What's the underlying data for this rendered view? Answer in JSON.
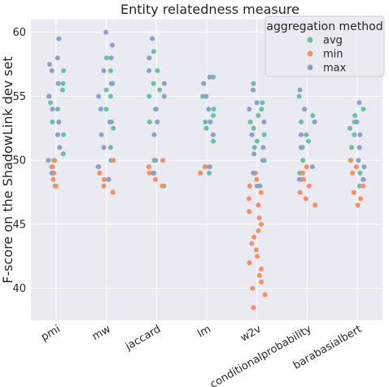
{
  "chart_data": {
    "type": "scatter",
    "subtype": "stripplot",
    "title": "Entity relatedness measure",
    "xlabel": "",
    "ylabel": "F-score on the ShadowLink dev set",
    "categories": [
      "pmi",
      "mw",
      "jaccard",
      "lm",
      "w2v",
      "conditionalprobability",
      "barabasialbert"
    ],
    "ylim": [
      37.5,
      61
    ],
    "yticks": [
      40,
      45,
      50,
      55,
      60
    ],
    "grid": true,
    "legend": {
      "title": "aggregation method",
      "placement": "top-right"
    },
    "series": [
      {
        "name": "avg",
        "color": "#66c2a5",
        "values": [
          [
            48,
            49.5,
            50,
            50.5,
            52,
            53,
            54,
            54.5,
            55,
            55.5,
            56,
            57
          ],
          [
            48.5,
            49.5,
            50,
            51,
            52.5,
            53,
            54,
            55,
            55.5,
            56,
            57,
            58
          ],
          [
            48,
            49,
            50,
            53,
            54,
            55,
            55.5,
            56,
            57,
            58.5
          ],
          [
            49,
            49.5,
            51.5,
            52.5,
            53,
            53.5,
            54,
            55,
            56.5
          ],
          [
            48,
            49,
            50,
            51,
            51.5,
            52,
            52.5,
            53,
            53.5,
            54,
            54.5,
            56
          ],
          [
            48.5,
            49,
            50,
            51,
            51.5,
            52,
            53,
            53.5,
            54,
            55
          ],
          [
            48,
            49,
            50,
            51,
            52,
            52.5,
            53,
            53.5,
            54
          ]
        ]
      },
      {
        "name": "min",
        "color": "#fc8d62",
        "values": [
          [
            48,
            48.5,
            49,
            49.5,
            50
          ],
          [
            47.5,
            48,
            48.5,
            49,
            49.5,
            50
          ],
          [
            48,
            48.5,
            49,
            49.5,
            50
          ],
          [
            49,
            49.5
          ],
          [
            38.5,
            39.5,
            40,
            40.5,
            41,
            41.5,
            42,
            42.5,
            43,
            43.5,
            44,
            44.5,
            45,
            45.5,
            46,
            46.5,
            47,
            47.5,
            48,
            48.5,
            49
          ],
          [
            46.5,
            47,
            47.5,
            48,
            48.5,
            49,
            49.5
          ],
          [
            46.5,
            47,
            47.5,
            48,
            48.5,
            49,
            49.5,
            50
          ]
        ]
      },
      {
        "name": "max",
        "color": "#8da0cb",
        "values": [
          [
            49,
            50,
            51,
            52,
            53,
            54,
            55,
            56,
            57,
            57.5,
            58,
            59.5
          ],
          [
            48.5,
            49.5,
            51,
            52,
            53,
            54,
            55,
            56,
            57,
            58,
            59,
            60
          ],
          [
            49,
            50,
            52,
            53,
            54,
            55,
            56,
            57,
            58,
            59.5
          ],
          [
            49.5,
            52,
            53,
            54,
            55,
            56,
            56.5
          ],
          [
            48,
            49,
            50,
            50.5,
            51,
            52,
            53,
            54,
            54.5,
            55.5
          ],
          [
            48.5,
            49.5,
            51,
            52,
            53,
            54,
            55.5
          ],
          [
            48.5,
            49.5,
            50,
            51,
            52,
            53,
            54.5
          ]
        ]
      }
    ]
  }
}
